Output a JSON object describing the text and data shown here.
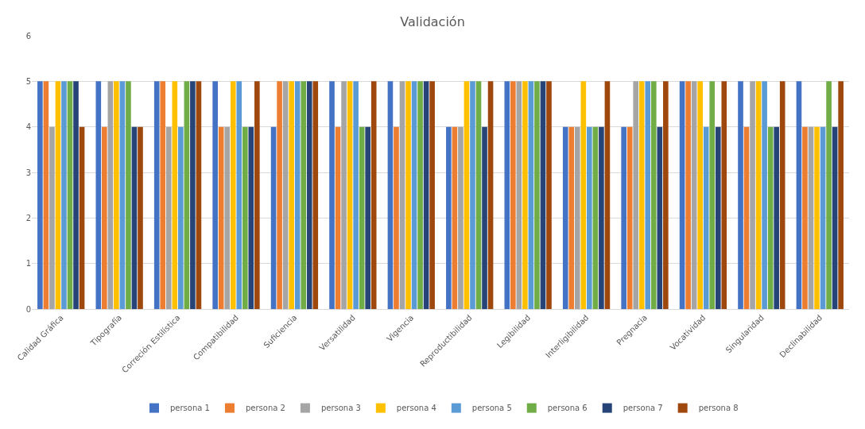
{
  "chart_data": {
    "type": "bar",
    "title": "Validación",
    "categories": [
      "Calidad Gráfica",
      "Tipografía",
      "Correción Estilística",
      "Compatibilidad",
      "Suficiencia",
      "Versatilidad",
      "Vigencia",
      "Reproductibilidad",
      "Legibilidad",
      "Interligibilidad",
      "Pregnacia",
      "Vocatividad",
      "Singularidad",
      "Declinabilidad"
    ],
    "series": [
      {
        "name": "persona 1",
        "color": "#4472c4",
        "values": [
          5,
          5,
          5,
          5,
          4,
          5,
          5,
          4,
          5,
          4,
          4,
          5,
          5,
          5
        ]
      },
      {
        "name": "persona 2",
        "color": "#ed7d31",
        "values": [
          5,
          4,
          5,
          4,
          5,
          4,
          4,
          4,
          5,
          4,
          4,
          5,
          4,
          4
        ]
      },
      {
        "name": "persona 3",
        "color": "#a5a5a5",
        "values": [
          4,
          5,
          4,
          4,
          5,
          5,
          5,
          4,
          5,
          4,
          5,
          5,
          5,
          4
        ]
      },
      {
        "name": "persona 4",
        "color": "#ffc000",
        "values": [
          5,
          5,
          5,
          5,
          5,
          5,
          5,
          5,
          5,
          5,
          5,
          5,
          5,
          4
        ]
      },
      {
        "name": "persona 5",
        "color": "#5b9bd5",
        "values": [
          5,
          5,
          4,
          5,
          5,
          5,
          5,
          5,
          5,
          4,
          5,
          4,
          5,
          4
        ]
      },
      {
        "name": "persona 6",
        "color": "#70ad47",
        "values": [
          5,
          5,
          5,
          4,
          5,
          4,
          5,
          5,
          5,
          4,
          5,
          5,
          4,
          5
        ]
      },
      {
        "name": "persona 7",
        "color": "#264478",
        "values": [
          5,
          4,
          5,
          4,
          5,
          4,
          5,
          4,
          5,
          4,
          4,
          4,
          4,
          4
        ]
      },
      {
        "name": "persona 8",
        "color": "#9e480e",
        "values": [
          4,
          4,
          5,
          5,
          5,
          5,
          5,
          5,
          5,
          5,
          5,
          5,
          5,
          5
        ]
      }
    ],
    "ylim": [
      0,
      6
    ],
    "yticks": [
      0,
      1,
      2,
      3,
      4,
      5,
      6
    ],
    "grid": "y",
    "legend": "bottom"
  }
}
